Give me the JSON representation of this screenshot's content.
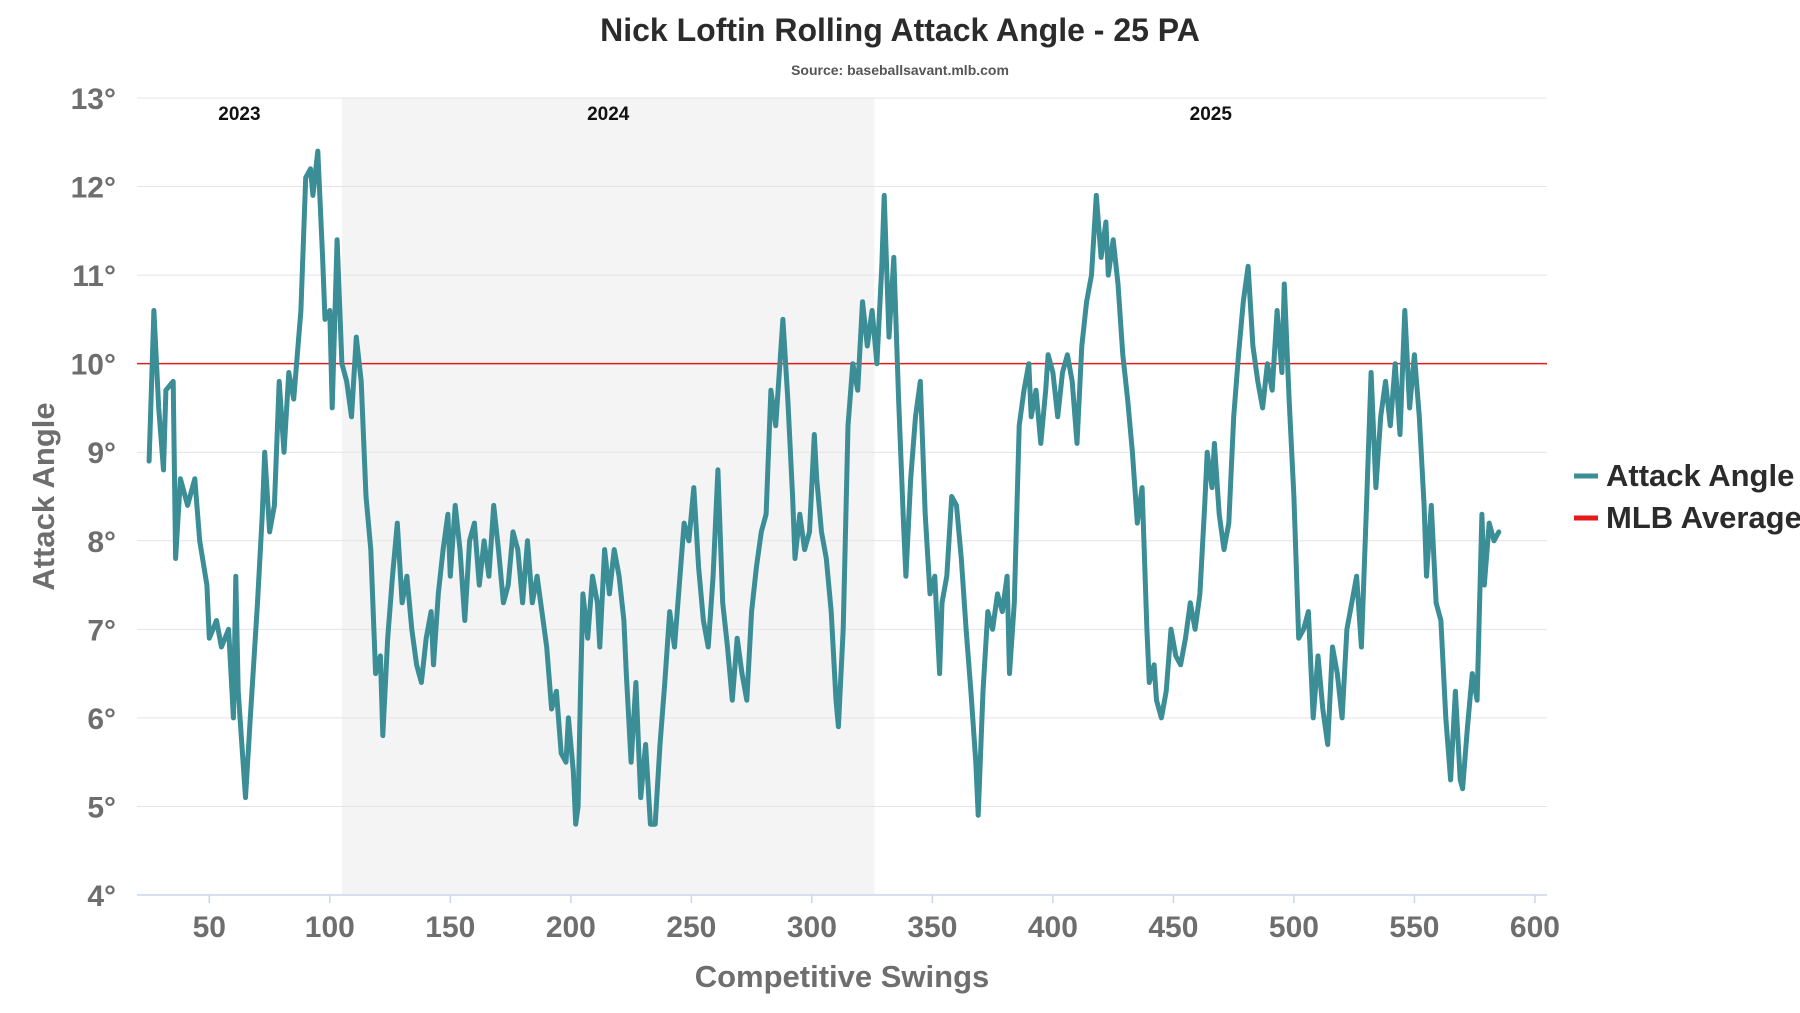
{
  "chart_data": {
    "type": "line",
    "title": "Nick Loftin Rolling Attack Angle - 25 PA",
    "subtitle": "Source: baseballsavant.mlb.com",
    "xlabel": "Competitive Swings",
    "ylabel": "Attack Angle",
    "xlim": [
      20,
      605
    ],
    "ylim": [
      4,
      13
    ],
    "x_ticks": [
      50,
      100,
      150,
      200,
      250,
      300,
      350,
      400,
      450,
      500,
      550,
      600
    ],
    "y_ticks": [
      4,
      5,
      6,
      7,
      8,
      9,
      10,
      11,
      12,
      13
    ],
    "y_tick_suffix": "°",
    "grid": "horizontal",
    "legend_position": "right",
    "seasons": [
      {
        "label": "2023",
        "start": 20,
        "end": 105,
        "shaded": false
      },
      {
        "label": "2024",
        "start": 105,
        "end": 326,
        "shaded": true
      },
      {
        "label": "2025",
        "start": 326,
        "end": 605,
        "shaded": false
      }
    ],
    "reference_line": {
      "name": "MLB Average",
      "value": 10.0,
      "color": "#e41a1c"
    },
    "series": [
      {
        "name": "Attack Angle",
        "color": "#3b8d96",
        "points": [
          [
            25,
            8.9
          ],
          [
            27,
            10.6
          ],
          [
            29,
            9.5
          ],
          [
            31,
            8.8
          ],
          [
            32,
            9.7
          ],
          [
            35,
            9.8
          ],
          [
            36,
            7.8
          ],
          [
            38,
            8.7
          ],
          [
            41,
            8.4
          ],
          [
            44,
            8.7
          ],
          [
            46,
            8.0
          ],
          [
            49,
            7.5
          ],
          [
            50,
            6.9
          ],
          [
            53,
            7.1
          ],
          [
            55,
            6.8
          ],
          [
            58,
            7.0
          ],
          [
            60,
            6.0
          ],
          [
            61,
            7.6
          ],
          [
            62,
            6.3
          ],
          [
            65,
            5.1
          ],
          [
            67,
            6.0
          ],
          [
            70,
            7.3
          ],
          [
            72,
            8.3
          ],
          [
            73,
            9.0
          ],
          [
            75,
            8.1
          ],
          [
            77,
            8.4
          ],
          [
            79,
            9.8
          ],
          [
            81,
            9.0
          ],
          [
            83,
            9.9
          ],
          [
            85,
            9.6
          ],
          [
            88,
            10.6
          ],
          [
            90,
            12.1
          ],
          [
            92,
            12.2
          ],
          [
            93,
            11.9
          ],
          [
            95,
            12.4
          ],
          [
            97,
            11.2
          ],
          [
            98,
            10.5
          ],
          [
            100,
            10.6
          ],
          [
            101,
            9.5
          ],
          [
            103,
            11.4
          ],
          [
            105,
            10.0
          ],
          [
            107,
            9.8
          ],
          [
            109,
            9.4
          ],
          [
            111,
            10.3
          ],
          [
            113,
            9.8
          ],
          [
            115,
            8.5
          ],
          [
            117,
            7.9
          ],
          [
            119,
            6.5
          ],
          [
            121,
            6.7
          ],
          [
            122,
            5.8
          ],
          [
            124,
            6.9
          ],
          [
            126,
            7.6
          ],
          [
            128,
            8.2
          ],
          [
            130,
            7.3
          ],
          [
            132,
            7.6
          ],
          [
            134,
            7.0
          ],
          [
            136,
            6.6
          ],
          [
            138,
            6.4
          ],
          [
            140,
            6.9
          ],
          [
            142,
            7.2
          ],
          [
            143,
            6.6
          ],
          [
            145,
            7.4
          ],
          [
            147,
            7.9
          ],
          [
            149,
            8.3
          ],
          [
            150,
            7.6
          ],
          [
            152,
            8.4
          ],
          [
            154,
            7.9
          ],
          [
            156,
            7.1
          ],
          [
            158,
            8.0
          ],
          [
            160,
            8.2
          ],
          [
            162,
            7.5
          ],
          [
            164,
            8.0
          ],
          [
            166,
            7.6
          ],
          [
            168,
            8.4
          ],
          [
            170,
            7.9
          ],
          [
            172,
            7.3
          ],
          [
            174,
            7.5
          ],
          [
            176,
            8.1
          ],
          [
            178,
            7.9
          ],
          [
            180,
            7.3
          ],
          [
            182,
            8.0
          ],
          [
            184,
            7.3
          ],
          [
            186,
            7.6
          ],
          [
            188,
            7.2
          ],
          [
            190,
            6.8
          ],
          [
            192,
            6.1
          ],
          [
            194,
            6.3
          ],
          [
            196,
            5.6
          ],
          [
            198,
            5.5
          ],
          [
            199,
            6.0
          ],
          [
            201,
            5.4
          ],
          [
            202,
            4.8
          ],
          [
            203,
            5.0
          ],
          [
            204,
            6.3
          ],
          [
            205,
            7.4
          ],
          [
            207,
            6.9
          ],
          [
            209,
            7.6
          ],
          [
            211,
            7.3
          ],
          [
            212,
            6.8
          ],
          [
            214,
            7.9
          ],
          [
            216,
            7.4
          ],
          [
            218,
            7.9
          ],
          [
            220,
            7.6
          ],
          [
            222,
            7.1
          ],
          [
            223,
            6.5
          ],
          [
            225,
            5.5
          ],
          [
            227,
            6.4
          ],
          [
            229,
            5.1
          ],
          [
            231,
            5.7
          ],
          [
            233,
            4.8
          ],
          [
            235,
            4.8
          ],
          [
            237,
            5.7
          ],
          [
            239,
            6.4
          ],
          [
            241,
            7.2
          ],
          [
            243,
            6.8
          ],
          [
            245,
            7.5
          ],
          [
            247,
            8.2
          ],
          [
            249,
            8.0
          ],
          [
            251,
            8.6
          ],
          [
            253,
            7.7
          ],
          [
            255,
            7.1
          ],
          [
            257,
            6.8
          ],
          [
            259,
            7.6
          ],
          [
            261,
            8.8
          ],
          [
            263,
            7.3
          ],
          [
            265,
            6.8
          ],
          [
            267,
            6.2
          ],
          [
            269,
            6.9
          ],
          [
            271,
            6.5
          ],
          [
            273,
            6.2
          ],
          [
            275,
            7.2
          ],
          [
            277,
            7.7
          ],
          [
            279,
            8.1
          ],
          [
            281,
            8.3
          ],
          [
            283,
            9.7
          ],
          [
            285,
            9.3
          ],
          [
            288,
            10.5
          ],
          [
            290,
            9.6
          ],
          [
            292,
            8.5
          ],
          [
            293,
            7.8
          ],
          [
            295,
            8.3
          ],
          [
            297,
            7.9
          ],
          [
            299,
            8.1
          ],
          [
            301,
            9.2
          ],
          [
            302,
            8.7
          ],
          [
            304,
            8.1
          ],
          [
            306,
            7.8
          ],
          [
            308,
            7.2
          ],
          [
            310,
            6.2
          ],
          [
            311,
            5.9
          ],
          [
            313,
            7.0
          ],
          [
            315,
            9.3
          ],
          [
            317,
            10.0
          ],
          [
            319,
            9.7
          ],
          [
            321,
            10.7
          ],
          [
            323,
            10.2
          ],
          [
            325,
            10.6
          ],
          [
            327,
            10.0
          ],
          [
            329,
            11.1
          ],
          [
            330,
            11.9
          ],
          [
            332,
            10.3
          ],
          [
            334,
            11.2
          ],
          [
            336,
            9.6
          ],
          [
            338,
            8.2
          ],
          [
            339,
            7.6
          ],
          [
            341,
            8.7
          ],
          [
            343,
            9.4
          ],
          [
            345,
            9.8
          ],
          [
            347,
            8.3
          ],
          [
            349,
            7.4
          ],
          [
            351,
            7.6
          ],
          [
            353,
            6.5
          ],
          [
            354,
            7.3
          ],
          [
            356,
            7.6
          ],
          [
            358,
            8.5
          ],
          [
            360,
            8.4
          ],
          [
            362,
            7.8
          ],
          [
            364,
            7.0
          ],
          [
            366,
            6.3
          ],
          [
            368,
            5.5
          ],
          [
            369,
            4.9
          ],
          [
            371,
            6.3
          ],
          [
            373,
            7.2
          ],
          [
            375,
            7.0
          ],
          [
            377,
            7.4
          ],
          [
            379,
            7.2
          ],
          [
            381,
            7.6
          ],
          [
            382,
            6.5
          ],
          [
            384,
            7.3
          ],
          [
            386,
            9.3
          ],
          [
            388,
            9.7
          ],
          [
            390,
            10.0
          ],
          [
            391,
            9.4
          ],
          [
            393,
            9.7
          ],
          [
            395,
            9.1
          ],
          [
            397,
            9.7
          ],
          [
            398,
            10.1
          ],
          [
            400,
            9.9
          ],
          [
            402,
            9.4
          ],
          [
            404,
            9.9
          ],
          [
            406,
            10.1
          ],
          [
            408,
            9.8
          ],
          [
            410,
            9.1
          ],
          [
            412,
            10.2
          ],
          [
            414,
            10.7
          ],
          [
            416,
            11.0
          ],
          [
            418,
            11.9
          ],
          [
            420,
            11.2
          ],
          [
            422,
            11.6
          ],
          [
            423,
            11.0
          ],
          [
            425,
            11.4
          ],
          [
            427,
            10.9
          ],
          [
            429,
            10.1
          ],
          [
            431,
            9.6
          ],
          [
            433,
            9.0
          ],
          [
            435,
            8.2
          ],
          [
            437,
            8.6
          ],
          [
            439,
            7.0
          ],
          [
            440,
            6.4
          ],
          [
            442,
            6.6
          ],
          [
            443,
            6.2
          ],
          [
            445,
            6.0
          ],
          [
            447,
            6.3
          ],
          [
            449,
            7.0
          ],
          [
            451,
            6.7
          ],
          [
            453,
            6.6
          ],
          [
            455,
            6.9
          ],
          [
            457,
            7.3
          ],
          [
            459,
            7.0
          ],
          [
            461,
            7.4
          ],
          [
            463,
            8.4
          ],
          [
            464,
            9.0
          ],
          [
            466,
            8.6
          ],
          [
            467,
            9.1
          ],
          [
            469,
            8.3
          ],
          [
            471,
            7.9
          ],
          [
            473,
            8.2
          ],
          [
            475,
            9.4
          ],
          [
            477,
            10.1
          ],
          [
            479,
            10.7
          ],
          [
            481,
            11.1
          ],
          [
            483,
            10.2
          ],
          [
            485,
            9.8
          ],
          [
            487,
            9.5
          ],
          [
            489,
            10.0
          ],
          [
            491,
            9.7
          ],
          [
            493,
            10.6
          ],
          [
            495,
            9.9
          ],
          [
            496,
            10.9
          ],
          [
            498,
            9.6
          ],
          [
            500,
            8.5
          ],
          [
            502,
            6.9
          ],
          [
            504,
            7.0
          ],
          [
            506,
            7.2
          ],
          [
            508,
            6.0
          ],
          [
            510,
            6.7
          ],
          [
            512,
            6.1
          ],
          [
            514,
            5.7
          ],
          [
            516,
            6.8
          ],
          [
            518,
            6.5
          ],
          [
            520,
            6.0
          ],
          [
            522,
            7.0
          ],
          [
            524,
            7.3
          ],
          [
            526,
            7.6
          ],
          [
            528,
            6.8
          ],
          [
            530,
            8.3
          ],
          [
            532,
            9.9
          ],
          [
            534,
            8.6
          ],
          [
            536,
            9.4
          ],
          [
            538,
            9.8
          ],
          [
            540,
            9.3
          ],
          [
            542,
            10.0
          ],
          [
            544,
            9.2
          ],
          [
            546,
            10.6
          ],
          [
            548,
            9.5
          ],
          [
            550,
            10.1
          ],
          [
            552,
            9.4
          ],
          [
            554,
            8.4
          ],
          [
            555,
            7.6
          ],
          [
            557,
            8.4
          ],
          [
            559,
            7.3
          ],
          [
            561,
            7.1
          ],
          [
            563,
            6.0
          ],
          [
            565,
            5.3
          ],
          [
            567,
            6.3
          ],
          [
            569,
            5.3
          ],
          [
            570,
            5.2
          ],
          [
            572,
            5.9
          ],
          [
            574,
            6.5
          ],
          [
            576,
            6.2
          ],
          [
            578,
            8.3
          ],
          [
            579,
            7.5
          ],
          [
            581,
            8.2
          ],
          [
            583,
            8.0
          ],
          [
            585,
            8.1
          ]
        ]
      }
    ]
  }
}
